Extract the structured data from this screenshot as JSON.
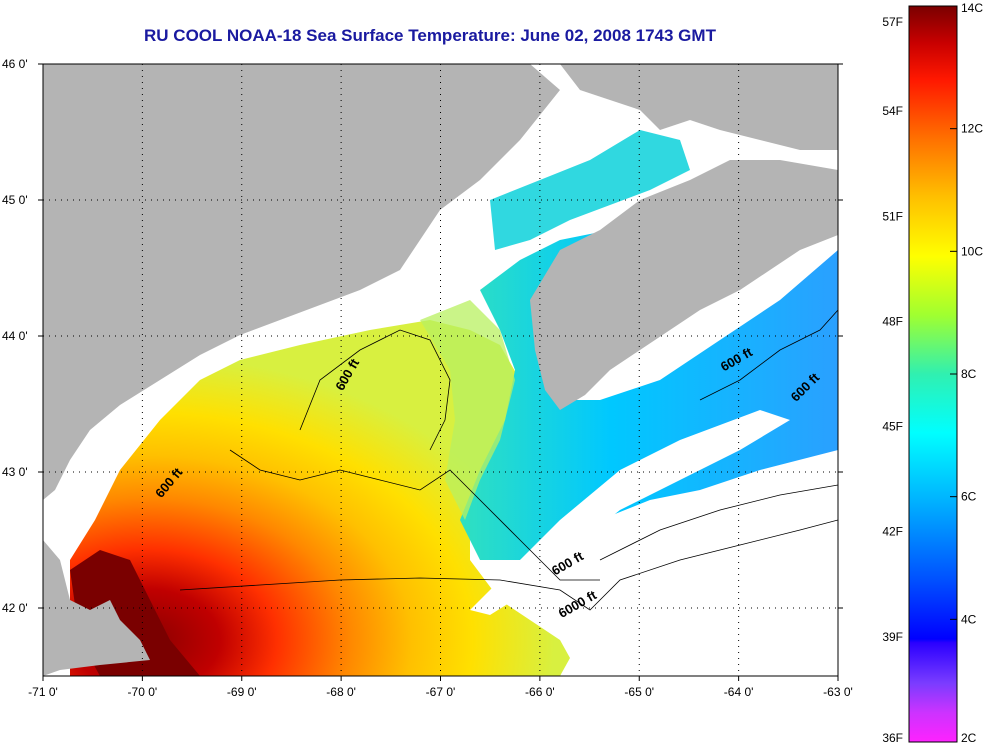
{
  "title": "RU COOL  NOAA-18  Sea Surface Temperature:  June 02, 2008 1743 GMT",
  "map": {
    "lon_range": [
      -71,
      -63
    ],
    "lat_range": [
      41.5,
      46
    ],
    "lon_ticks": [
      {
        "value": -71,
        "label": "-71 0'"
      },
      {
        "value": -70,
        "label": "-70 0'"
      },
      {
        "value": -69,
        "label": "-69 0'"
      },
      {
        "value": -68,
        "label": "-68 0'"
      },
      {
        "value": -67,
        "label": "-67 0'"
      },
      {
        "value": -66,
        "label": "-66 0'"
      },
      {
        "value": -65,
        "label": "-65 0'"
      },
      {
        "value": -64,
        "label": "-64 0'"
      },
      {
        "value": -63,
        "label": "-63 0'"
      }
    ],
    "lat_ticks": [
      {
        "value": 46,
        "label": "46 0'"
      },
      {
        "value": 45,
        "label": "45 0'"
      },
      {
        "value": 44,
        "label": "44 0'"
      },
      {
        "value": 43,
        "label": "43 0'"
      },
      {
        "value": 42,
        "label": "42 0'"
      }
    ],
    "contour_labels": [
      {
        "text": "600 ft",
        "lon": -67.9,
        "lat": 43.7,
        "angle": -60
      },
      {
        "text": "600 ft",
        "lon": -69.7,
        "lat": 42.9,
        "angle": -50
      },
      {
        "text": "600 ft",
        "lon": -64.0,
        "lat": 43.8,
        "angle": -30
      },
      {
        "text": "600 ft",
        "lon": -63.3,
        "lat": 43.6,
        "angle": -45
      },
      {
        "text": "600 ft",
        "lon": -65.7,
        "lat": 42.3,
        "angle": -30
      },
      {
        "text": "6000 ft",
        "lon": -65.6,
        "lat": 42.0,
        "angle": -30
      }
    ],
    "land_color": "#b4b4b4",
    "no_data_color": "#ffffff"
  },
  "colorbar": {
    "left_labels": [
      "57F",
      "54F",
      "51F",
      "48F",
      "45F",
      "42F",
      "39F",
      "36F"
    ],
    "right_labels": [
      "14C",
      "12C",
      "10C",
      "8C",
      "6C",
      "4C",
      "2C"
    ],
    "stops": [
      "#ff00ff",
      "#6040ff",
      "#0000ff",
      "#0060ff",
      "#00c8ff",
      "#00ffff",
      "#40ff80",
      "#c8ff00",
      "#ffff00",
      "#ffc000",
      "#ff7000",
      "#ff2000",
      "#d00000",
      "#800000"
    ]
  }
}
